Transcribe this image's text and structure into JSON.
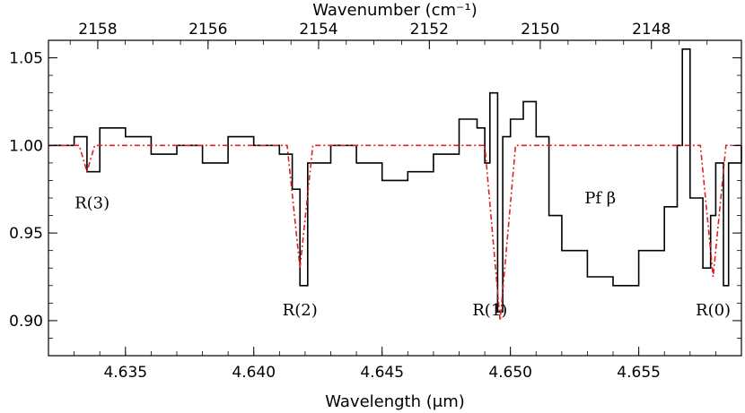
{
  "chart_data": {
    "type": "line",
    "xlabel": "Wavelength (μm)",
    "x2label": "Wavenumber (cm⁻¹)",
    "xlim": [
      4.632,
      4.659
    ],
    "ylim": [
      0.88,
      1.06
    ],
    "x_ticks": [
      "4.635",
      "4.640",
      "4.645",
      "4.650",
      "4.655"
    ],
    "y_ticks": [
      "0.90",
      "0.95",
      "1.00",
      "1.05"
    ],
    "x2_ticks": [
      "2158",
      "2156",
      "2154",
      "2152",
      "2150",
      "2148"
    ],
    "grid": false,
    "series": [
      {
        "style": "solid",
        "color": "#000000",
        "x": [
          4.632,
          4.633,
          4.6335,
          4.634,
          4.635,
          4.636,
          4.637,
          4.638,
          4.639,
          4.64,
          4.641,
          4.6415,
          4.6418,
          4.6421,
          4.643,
          4.644,
          4.645,
          4.646,
          4.647,
          4.648,
          4.6487,
          4.649,
          4.6492,
          4.6495,
          4.6497,
          4.65,
          4.6505,
          4.651,
          4.6515,
          4.652,
          4.653,
          4.654,
          4.655,
          4.656,
          4.6565,
          4.6567,
          4.657,
          4.6575,
          4.6578,
          4.658,
          4.6583,
          4.6585,
          4.659
        ],
        "y": [
          1.0,
          1.005,
          0.985,
          1.01,
          1.005,
          0.995,
          1.0,
          0.99,
          1.005,
          1.0,
          0.995,
          0.975,
          0.92,
          0.99,
          1.0,
          0.99,
          0.98,
          0.985,
          0.995,
          1.015,
          1.01,
          0.99,
          1.03,
          0.905,
          1.005,
          1.015,
          1.025,
          1.005,
          0.96,
          0.94,
          0.925,
          0.92,
          0.94,
          0.965,
          1.0,
          1.055,
          0.97,
          0.93,
          0.96,
          0.99,
          0.92,
          0.99,
          1.0
        ]
      },
      {
        "style": "dash-dot",
        "color": "#e02020",
        "x": [
          4.632,
          4.6332,
          4.6335,
          4.6338,
          4.6413,
          4.6418,
          4.6423,
          4.649,
          4.6496,
          4.6502,
          4.6574,
          4.6579,
          4.6584,
          4.659
        ],
        "y": [
          1.0,
          1.0,
          0.985,
          1.0,
          1.0,
          0.93,
          1.0,
          1.0,
          0.9,
          1.0,
          1.0,
          0.925,
          1.0,
          1.0
        ]
      }
    ],
    "annotations": [
      {
        "text": "R(3)",
        "x": 4.6337,
        "y": 0.964
      },
      {
        "text": "R(2)",
        "x": 4.6418,
        "y": 0.903
      },
      {
        "text": "R(1)",
        "x": 4.6492,
        "y": 0.903
      },
      {
        "text": "Pf β",
        "x": 4.6535,
        "y": 0.967
      },
      {
        "text": "R(0)",
        "x": 4.6579,
        "y": 0.903
      }
    ]
  }
}
